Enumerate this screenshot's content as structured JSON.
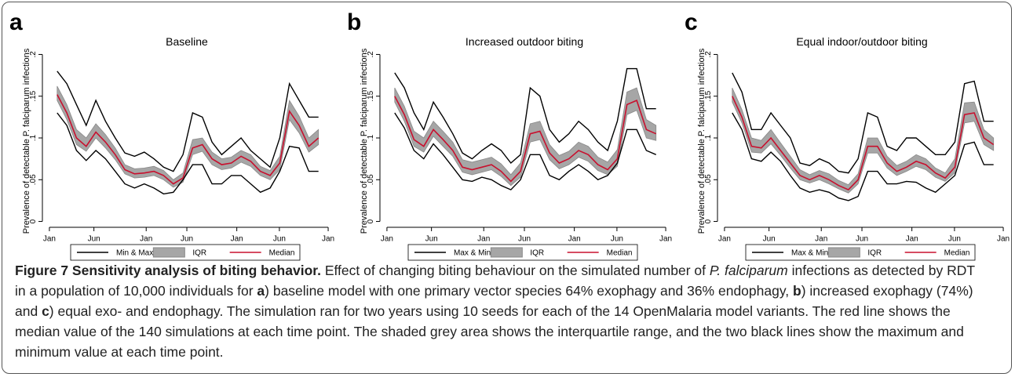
{
  "chart_data": [
    {
      "type": "line",
      "panel_label": "a",
      "title": "Baseline",
      "y_label": "Prevalence of detectable P. falciparum infections",
      "x": [
        1,
        2.25,
        3.5,
        4.75,
        6,
        7.25,
        8.5,
        9.75,
        11,
        12.25,
        13.5,
        14.75,
        16,
        17.25,
        18.5,
        19.75,
        21,
        22.25,
        23.5,
        24.75,
        26,
        27.25,
        28.5,
        29.75,
        31,
        32.25,
        33.5,
        34.75
      ],
      "xlim": [
        -0.6,
        36.4
      ],
      "ylim": [
        -0.007,
        0.207
      ],
      "xticks": [
        {
          "value": 0,
          "label": "Jan"
        },
        {
          "value": 5.75,
          "label": "Jun"
        },
        {
          "value": 12.5,
          "label": "Jan"
        },
        {
          "value": 17.75,
          "label": "Jun"
        },
        {
          "value": 24.2,
          "label": "Jan"
        },
        {
          "value": 29.7,
          "label": "Jun"
        },
        {
          "value": 36,
          "label": "Jan"
        }
      ],
      "yticks": [
        0,
        {
          "value": 0.05,
          "label": ".05"
        },
        {
          "value": 0.1,
          "label": ".1"
        },
        {
          "value": 0.15,
          "label": ".15"
        },
        {
          "value": 0.2,
          "label": ".2"
        }
      ],
      "series": [
        {
          "name": "Min & Max",
          "color": "#000000",
          "high": [
            0.18,
            0.165,
            0.14,
            0.115,
            0.145,
            0.12,
            0.1,
            0.082,
            0.078,
            0.083,
            0.075,
            0.065,
            0.06,
            0.08,
            0.13,
            0.125,
            0.095,
            0.08,
            0.09,
            0.1,
            0.085,
            0.075,
            0.065,
            0.1,
            0.165,
            0.145,
            0.125,
            0.125
          ],
          "low": [
            0.13,
            0.115,
            0.085,
            0.073,
            0.085,
            0.075,
            0.06,
            0.045,
            0.04,
            0.045,
            0.04,
            0.033,
            0.035,
            0.05,
            0.068,
            0.068,
            0.045,
            0.045,
            0.055,
            0.055,
            0.045,
            0.035,
            0.04,
            0.06,
            0.09,
            0.088,
            0.06,
            0.06
          ]
        },
        {
          "name": "IQR",
          "color": "#a6a6a6",
          "high": [
            0.162,
            0.14,
            0.11,
            0.1,
            0.117,
            0.104,
            0.088,
            0.068,
            0.063,
            0.064,
            0.066,
            0.061,
            0.05,
            0.058,
            0.098,
            0.1,
            0.083,
            0.075,
            0.077,
            0.085,
            0.08,
            0.066,
            0.061,
            0.078,
            0.145,
            0.126,
            0.1,
            0.11
          ],
          "low": [
            0.145,
            0.122,
            0.092,
            0.084,
            0.1,
            0.088,
            0.074,
            0.057,
            0.052,
            0.053,
            0.055,
            0.05,
            0.041,
            0.047,
            0.08,
            0.084,
            0.068,
            0.062,
            0.064,
            0.071,
            0.066,
            0.055,
            0.05,
            0.062,
            0.122,
            0.106,
            0.083,
            0.092
          ]
        },
        {
          "name": "Median",
          "color": "#c8102e",
          "values": [
            0.152,
            0.13,
            0.1,
            0.09,
            0.107,
            0.095,
            0.08,
            0.062,
            0.057,
            0.058,
            0.06,
            0.055,
            0.045,
            0.052,
            0.088,
            0.092,
            0.075,
            0.068,
            0.07,
            0.078,
            0.072,
            0.06,
            0.055,
            0.07,
            0.132,
            0.115,
            0.09,
            0.1
          ]
        }
      ]
    },
    {
      "type": "line",
      "panel_label": "b",
      "title": "Increased outdoor biting",
      "y_label": "Prevalence of detectable P. falciparum infections",
      "x": [
        1,
        2.25,
        3.5,
        4.75,
        6,
        7.25,
        8.5,
        9.75,
        11,
        12.25,
        13.5,
        14.75,
        16,
        17.25,
        18.5,
        19.75,
        21,
        22.25,
        23.5,
        24.75,
        26,
        27.25,
        28.5,
        29.75,
        31,
        32.25,
        33.5,
        34.75
      ],
      "xlim": [
        -0.6,
        36.4
      ],
      "ylim": [
        -0.007,
        0.207
      ],
      "xticks": [
        {
          "value": 0,
          "label": "Jan"
        },
        {
          "value": 5.75,
          "label": "Jun"
        },
        {
          "value": 12.5,
          "label": "Jan"
        },
        {
          "value": 17.75,
          "label": "Jun"
        },
        {
          "value": 24.2,
          "label": "Jan"
        },
        {
          "value": 29.7,
          "label": "Jun"
        },
        {
          "value": 36,
          "label": "Jan"
        }
      ],
      "yticks": [
        0,
        {
          "value": 0.05,
          "label": ".05"
        },
        {
          "value": 0.1,
          "label": ".1"
        },
        {
          "value": 0.15,
          "label": ".15"
        },
        {
          "value": 0.2,
          "label": ".2"
        }
      ],
      "series": [
        {
          "name": "Max & Min",
          "color": "#000000",
          "high": [
            0.178,
            0.16,
            0.13,
            0.11,
            0.143,
            0.125,
            0.105,
            0.082,
            0.075,
            0.085,
            0.093,
            0.085,
            0.07,
            0.08,
            0.16,
            0.15,
            0.11,
            0.095,
            0.105,
            0.12,
            0.11,
            0.095,
            0.085,
            0.12,
            0.183,
            0.183,
            0.135,
            0.135
          ],
          "low": [
            0.13,
            0.112,
            0.085,
            0.075,
            0.093,
            0.08,
            0.065,
            0.05,
            0.048,
            0.053,
            0.05,
            0.043,
            0.038,
            0.05,
            0.08,
            0.08,
            0.055,
            0.05,
            0.06,
            0.068,
            0.06,
            0.05,
            0.055,
            0.07,
            0.11,
            0.11,
            0.085,
            0.08
          ]
        },
        {
          "name": "IQR",
          "color": "#a6a6a6",
          "high": [
            0.16,
            0.138,
            0.108,
            0.1,
            0.12,
            0.108,
            0.095,
            0.074,
            0.071,
            0.074,
            0.077,
            0.069,
            0.056,
            0.07,
            0.117,
            0.12,
            0.092,
            0.079,
            0.084,
            0.095,
            0.09,
            0.077,
            0.071,
            0.086,
            0.155,
            0.16,
            0.122,
            0.115
          ],
          "low": [
            0.143,
            0.12,
            0.09,
            0.083,
            0.102,
            0.09,
            0.078,
            0.059,
            0.056,
            0.059,
            0.062,
            0.054,
            0.043,
            0.053,
            0.095,
            0.098,
            0.074,
            0.063,
            0.068,
            0.077,
            0.072,
            0.061,
            0.056,
            0.066,
            0.128,
            0.133,
            0.1,
            0.097
          ]
        },
        {
          "name": "Median",
          "color": "#c8102e",
          "values": [
            0.15,
            0.128,
            0.098,
            0.09,
            0.11,
            0.098,
            0.085,
            0.065,
            0.062,
            0.065,
            0.068,
            0.06,
            0.048,
            0.06,
            0.105,
            0.108,
            0.082,
            0.07,
            0.075,
            0.085,
            0.08,
            0.068,
            0.062,
            0.075,
            0.14,
            0.145,
            0.11,
            0.105
          ]
        }
      ]
    },
    {
      "type": "line",
      "panel_label": "c",
      "title": "Equal indoor/outdoor biting",
      "y_label": "Prevalence of detectable P. falciparum infections",
      "x": [
        1,
        2.25,
        3.5,
        4.75,
        6,
        7.25,
        8.5,
        9.75,
        11,
        12.25,
        13.5,
        14.75,
        16,
        17.25,
        18.5,
        19.75,
        21,
        22.25,
        23.5,
        24.75,
        26,
        27.25,
        28.5,
        29.75,
        31,
        32.25,
        33.5,
        34.75
      ],
      "xlim": [
        -0.6,
        36.4
      ],
      "ylim": [
        -0.007,
        0.207
      ],
      "xticks": [
        {
          "value": 0,
          "label": "Jan"
        },
        {
          "value": 5.75,
          "label": "Jun"
        },
        {
          "value": 12.5,
          "label": "Jan"
        },
        {
          "value": 17.75,
          "label": "Jun"
        },
        {
          "value": 24.2,
          "label": "Jan"
        },
        {
          "value": 29.7,
          "label": "Jun"
        },
        {
          "value": 36,
          "label": "Jan"
        }
      ],
      "yticks": [
        0,
        {
          "value": 0.05,
          "label": ".05"
        },
        {
          "value": 0.1,
          "label": ".1"
        },
        {
          "value": 0.15,
          "label": ".15"
        },
        {
          "value": 0.2,
          "label": ".2"
        }
      ],
      "series": [
        {
          "name": "Max & Min",
          "color": "#000000",
          "high": [
            0.178,
            0.155,
            0.11,
            0.11,
            0.13,
            0.115,
            0.1,
            0.07,
            0.067,
            0.075,
            0.07,
            0.06,
            0.058,
            0.075,
            0.13,
            0.125,
            0.09,
            0.085,
            0.1,
            0.1,
            0.09,
            0.08,
            0.08,
            0.095,
            0.165,
            0.168,
            0.12,
            0.12
          ],
          "low": [
            0.13,
            0.11,
            0.075,
            0.072,
            0.083,
            0.072,
            0.055,
            0.04,
            0.035,
            0.038,
            0.035,
            0.028,
            0.025,
            0.03,
            0.06,
            0.06,
            0.045,
            0.045,
            0.048,
            0.047,
            0.04,
            0.035,
            0.045,
            0.055,
            0.092,
            0.095,
            0.068,
            0.068
          ]
        },
        {
          "name": "IQR",
          "color": "#a6a6a6",
          "high": [
            0.16,
            0.134,
            0.1,
            0.097,
            0.11,
            0.094,
            0.078,
            0.062,
            0.056,
            0.061,
            0.057,
            0.049,
            0.044,
            0.057,
            0.1,
            0.1,
            0.078,
            0.067,
            0.072,
            0.08,
            0.075,
            0.064,
            0.058,
            0.075,
            0.142,
            0.143,
            0.11,
            0.1
          ],
          "low": [
            0.143,
            0.118,
            0.083,
            0.082,
            0.093,
            0.079,
            0.064,
            0.05,
            0.046,
            0.05,
            0.045,
            0.039,
            0.034,
            0.045,
            0.082,
            0.082,
            0.064,
            0.055,
            0.06,
            0.066,
            0.062,
            0.053,
            0.048,
            0.058,
            0.118,
            0.12,
            0.092,
            0.085
          ]
        },
        {
          "name": "Median",
          "color": "#c8102e",
          "values": [
            0.15,
            0.125,
            0.09,
            0.088,
            0.1,
            0.085,
            0.07,
            0.055,
            0.05,
            0.055,
            0.05,
            0.043,
            0.038,
            0.05,
            0.09,
            0.09,
            0.07,
            0.06,
            0.065,
            0.072,
            0.068,
            0.058,
            0.052,
            0.065,
            0.128,
            0.13,
            0.1,
            0.092
          ]
        }
      ]
    }
  ],
  "caption": {
    "title": "Figure 7 Sensitivity analysis of biting behavior.",
    "parts": [
      "Effect of changing biting behaviour on the simulated number of ",
      "P. falciparum",
      " infections as detected by RDT in a population of 10,000 individuals for ",
      "a",
      ") baseline model with one primary vector species 64% exophagy and 36% endophagy, ",
      "b",
      ") increased exophagy (74%) and ",
      "c",
      ") equal exo- and endophagy. The simulation ran for two years using 10 seeds for each of the 14 OpenMalaria model variants. The red line shows the median value of the 140 simulations at each time point. The shaded grey area shows the interquartile range, and the two black lines show the maximum and minimum value at each time point."
    ]
  }
}
